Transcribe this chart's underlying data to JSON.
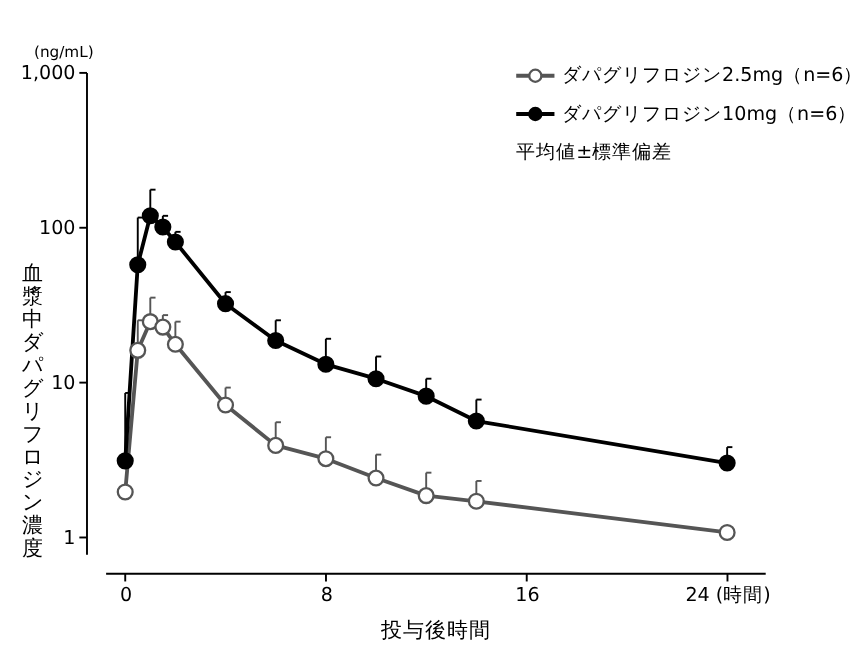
{
  "chart_data": {
    "type": "line",
    "xlabel": "投与後時間",
    "ylabel": "血漿中ダパグリフロジン濃度",
    "x": [
      0,
      0.5,
      1,
      1.5,
      2,
      4,
      6,
      8,
      10,
      12,
      14,
      24
    ],
    "series": [
      {
        "name": "ダパグリフロジン2.5mg（n=6）",
        "color": "#555555",
        "values": [
          1.95,
          16,
          24.5,
          22.6,
          17.5,
          7.1,
          3.9,
          3.2,
          2.4,
          1.85,
          1.7,
          1.07
        ],
        "errors": [
          null,
          [
            16,
            25
          ],
          [
            24.5,
            35
          ],
          [
            22.6,
            27
          ],
          [
            17.5,
            24.5
          ],
          [
            7.1,
            9.2
          ],
          [
            3.9,
            5.5
          ],
          [
            3.2,
            4.4
          ],
          [
            2.4,
            3.4
          ],
          [
            1.85,
            2.6
          ],
          [
            1.7,
            2.3
          ],
          null
        ]
      },
      {
        "name": "ダパグリフロジン10mg（n=6）",
        "color": "#000000",
        "values": [
          3.1,
          57,
          118,
          100,
          80,
          32,
          18.5,
          13,
          10.5,
          8.1,
          5.6,
          3.0
        ],
        "errors": [
          [
            3.1,
            8.5
          ],
          [
            57,
            115
          ],
          [
            118,
            174
          ],
          [
            100,
            118
          ],
          [
            80,
            93
          ],
          [
            32,
            38
          ],
          [
            18.5,
            25
          ],
          [
            13,
            19
          ],
          [
            10.5,
            14.6
          ],
          [
            8.1,
            10.5
          ],
          [
            5.6,
            7.7
          ],
          [
            3.0,
            3.8
          ]
        ]
      }
    ],
    "log": "y",
    "ylim": [
      0.78,
      1000
    ],
    "yticks": [
      1,
      10,
      100,
      {
        "value": 1000,
        "label": "1,000"
      }
    ],
    "xlim": [
      -0.8,
      25.5
    ],
    "xticks": [
      0,
      8,
      16,
      {
        "value": 24,
        "label": "24 (時間)"
      }
    ],
    "marker": "circle",
    "line_style": "solid",
    "grid": false,
    "legend": "top right",
    "annotations": [
      "(ng/mL)",
      "平均値±標準偏差"
    ]
  }
}
